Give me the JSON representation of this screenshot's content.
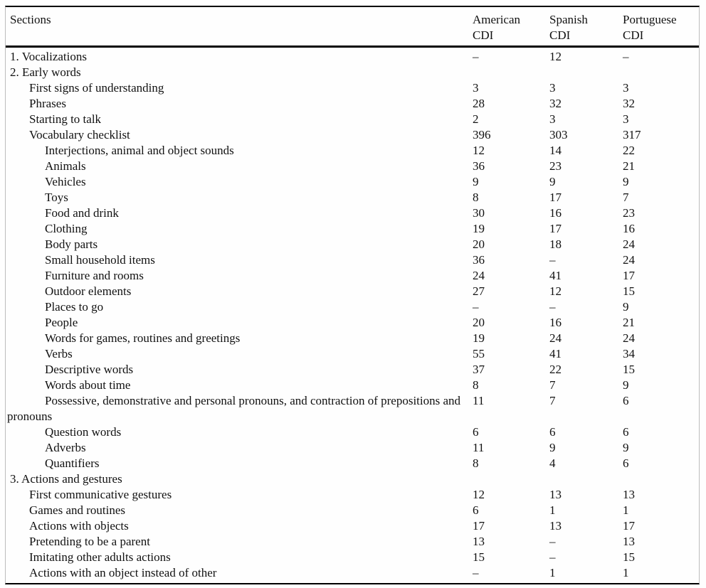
{
  "table": {
    "columns": [
      "Sections",
      "American\nCDI",
      "Spanish\nCDI",
      "Portuguese\nCDI"
    ],
    "dash_character": "–",
    "text_color": "#111111",
    "rule_color": "#000000",
    "rows": [
      {
        "label": "1. Vocalizations",
        "indent": 0,
        "values": [
          "–",
          "12",
          "–"
        ]
      },
      {
        "label": "2. Early words",
        "indent": 0,
        "values": [
          "",
          "",
          ""
        ]
      },
      {
        "label": "First signs of understanding",
        "indent": 1,
        "values": [
          "3",
          "3",
          "3"
        ]
      },
      {
        "label": "Phrases",
        "indent": 1,
        "values": [
          "28",
          "32",
          "32"
        ]
      },
      {
        "label": "Starting to talk",
        "indent": 1,
        "values": [
          "2",
          "3",
          "3"
        ]
      },
      {
        "label": "Vocabulary checklist",
        "indent": 1,
        "values": [
          "396",
          "303",
          "317"
        ]
      },
      {
        "label": "Interjections, animal and object sounds",
        "indent": 2,
        "values": [
          "12",
          "14",
          "22"
        ]
      },
      {
        "label": "Animals",
        "indent": 2,
        "values": [
          "36",
          "23",
          "21"
        ]
      },
      {
        "label": "Vehicles",
        "indent": 2,
        "values": [
          "9",
          "9",
          "9"
        ]
      },
      {
        "label": "Toys",
        "indent": 2,
        "values": [
          "8",
          "17",
          "7"
        ]
      },
      {
        "label": "Food and drink",
        "indent": 2,
        "values": [
          "30",
          "16",
          "23"
        ]
      },
      {
        "label": "Clothing",
        "indent": 2,
        "values": [
          "19",
          "17",
          "16"
        ]
      },
      {
        "label": "Body parts",
        "indent": 2,
        "values": [
          "20",
          "18",
          "24"
        ]
      },
      {
        "label": "Small household items",
        "indent": 2,
        "values": [
          "36",
          "–",
          "24"
        ]
      },
      {
        "label": "Furniture and rooms",
        "indent": 2,
        "values": [
          "24",
          "41",
          "17"
        ]
      },
      {
        "label": "Outdoor elements",
        "indent": 2,
        "values": [
          "27",
          "12",
          "15"
        ]
      },
      {
        "label": "Places to go",
        "indent": 2,
        "values": [
          "–",
          "–",
          "9"
        ]
      },
      {
        "label": "People",
        "indent": 2,
        "values": [
          "20",
          "16",
          "21"
        ]
      },
      {
        "label": "Words for games, routines and greetings",
        "indent": 2,
        "values": [
          "19",
          "24",
          "24"
        ]
      },
      {
        "label": "Verbs",
        "indent": 2,
        "values": [
          "55",
          "41",
          "34"
        ]
      },
      {
        "label": "Descriptive words",
        "indent": 2,
        "values": [
          "37",
          "22",
          "15"
        ]
      },
      {
        "label": "Words about time",
        "indent": 2,
        "values": [
          "8",
          "7",
          "9"
        ]
      },
      {
        "label": "Possessive, demonstrative and personal pronouns, and contraction of prepositions and\npronouns",
        "indent": "wrap",
        "values": [
          "11",
          "7",
          "6"
        ]
      },
      {
        "label": "Question words",
        "indent": 2,
        "values": [
          "6",
          "6",
          "6"
        ]
      },
      {
        "label": "Adverbs",
        "indent": 2,
        "values": [
          "11",
          "9",
          "9"
        ]
      },
      {
        "label": "Quantifiers",
        "indent": 2,
        "values": [
          "8",
          "4",
          "6"
        ]
      },
      {
        "label": "3. Actions and gestures",
        "indent": 0,
        "values": [
          "",
          "",
          ""
        ]
      },
      {
        "label": "First communicative gestures",
        "indent": 1,
        "values": [
          "12",
          "13",
          "13"
        ]
      },
      {
        "label": "Games and routines",
        "indent": 1,
        "values": [
          "6",
          "1",
          "1"
        ]
      },
      {
        "label": "Actions with objects",
        "indent": 1,
        "values": [
          "17",
          "13",
          "17"
        ]
      },
      {
        "label": "Pretending to be a parent",
        "indent": 1,
        "values": [
          "13",
          "–",
          "13"
        ]
      },
      {
        "label": "Imitating other adults actions",
        "indent": 1,
        "values": [
          "15",
          "–",
          "15"
        ]
      },
      {
        "label": "Actions with an object instead of other",
        "indent": 1,
        "values": [
          "–",
          "1",
          "1"
        ]
      }
    ]
  }
}
